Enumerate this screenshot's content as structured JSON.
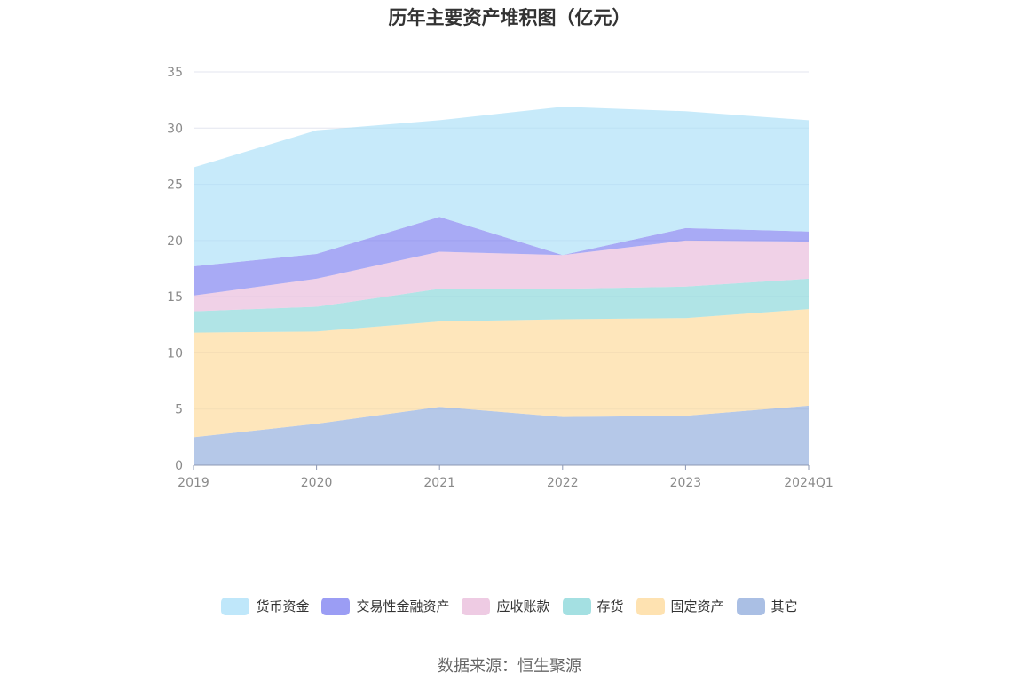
{
  "chart_data": {
    "type": "area",
    "stacked": true,
    "title": "历年主要资产堆积图（亿元）",
    "xlabel": "",
    "ylabel": "",
    "categories": [
      "2019",
      "2020",
      "2021",
      "2022",
      "2023",
      "2024Q1"
    ],
    "ylim": [
      0,
      35
    ],
    "yticks": [
      0,
      5,
      10,
      15,
      20,
      25,
      30,
      35
    ],
    "grid": true,
    "legend_position": "bottom",
    "series": [
      {
        "name": "其它",
        "color": "#8eaadb",
        "values": [
          2.5,
          3.7,
          5.2,
          4.3,
          4.4,
          5.3
        ]
      },
      {
        "name": "固定资产",
        "color": "#fdd897",
        "values": [
          9.3,
          8.2,
          7.6,
          8.7,
          8.7,
          8.6
        ]
      },
      {
        "name": "存货",
        "color": "#85d6d8",
        "values": [
          1.9,
          2.2,
          2.9,
          2.7,
          2.8,
          2.7
        ]
      },
      {
        "name": "应收账款",
        "color": "#e8b9da",
        "values": [
          1.4,
          2.5,
          3.3,
          3.0,
          4.1,
          3.3
        ]
      },
      {
        "name": "交易性金融资产",
        "color": "#7a7cf0",
        "values": [
          2.6,
          2.2,
          3.1,
          0.0,
          1.1,
          0.9
        ]
      },
      {
        "name": "货币资金",
        "color": "#a9dff8",
        "values": [
          8.8,
          11.0,
          8.6,
          13.2,
          10.4,
          9.9
        ]
      }
    ]
  },
  "legend_order": [
    "货币资金",
    "交易性金融资产",
    "应收账款",
    "存货",
    "固定资产",
    "其它"
  ],
  "source_note": "数据来源：恒生聚源"
}
